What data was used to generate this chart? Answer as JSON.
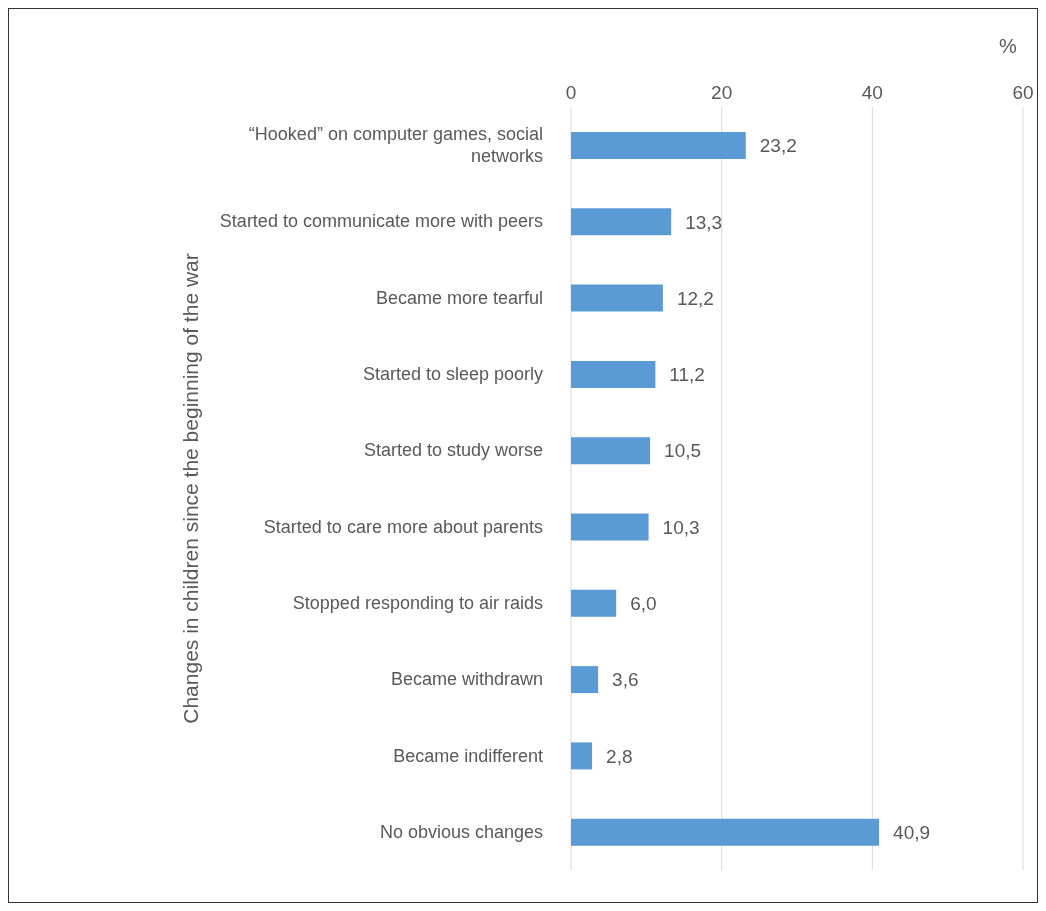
{
  "chart_data": {
    "type": "bar",
    "orientation": "horizontal",
    "xlabel": "%",
    "ylabel": "Changes in children since the beginning of the war",
    "categories": [
      "“Hooked” on computer games, social networks",
      "Started to communicate more with peers",
      "Became more tearful",
      "Started to sleep poorly",
      "Started to study worse",
      "Started to care more about parents",
      "Stopped responding to air raids",
      "Became withdrawn",
      "Became indifferent",
      "No obvious changes"
    ],
    "values": [
      23.2,
      13.3,
      12.2,
      11.2,
      10.5,
      10.3,
      6.0,
      3.6,
      2.8,
      40.9
    ],
    "value_labels": [
      "23,2",
      "13,3",
      "12,2",
      "11,2",
      "10,5",
      "10,3",
      "6,0",
      "3,6",
      "2,8",
      "40,9"
    ],
    "color": "#5b9bd5",
    "xlim": [
      0,
      60
    ],
    "xticks": [
      0,
      20,
      40,
      60
    ],
    "grid": "x"
  }
}
